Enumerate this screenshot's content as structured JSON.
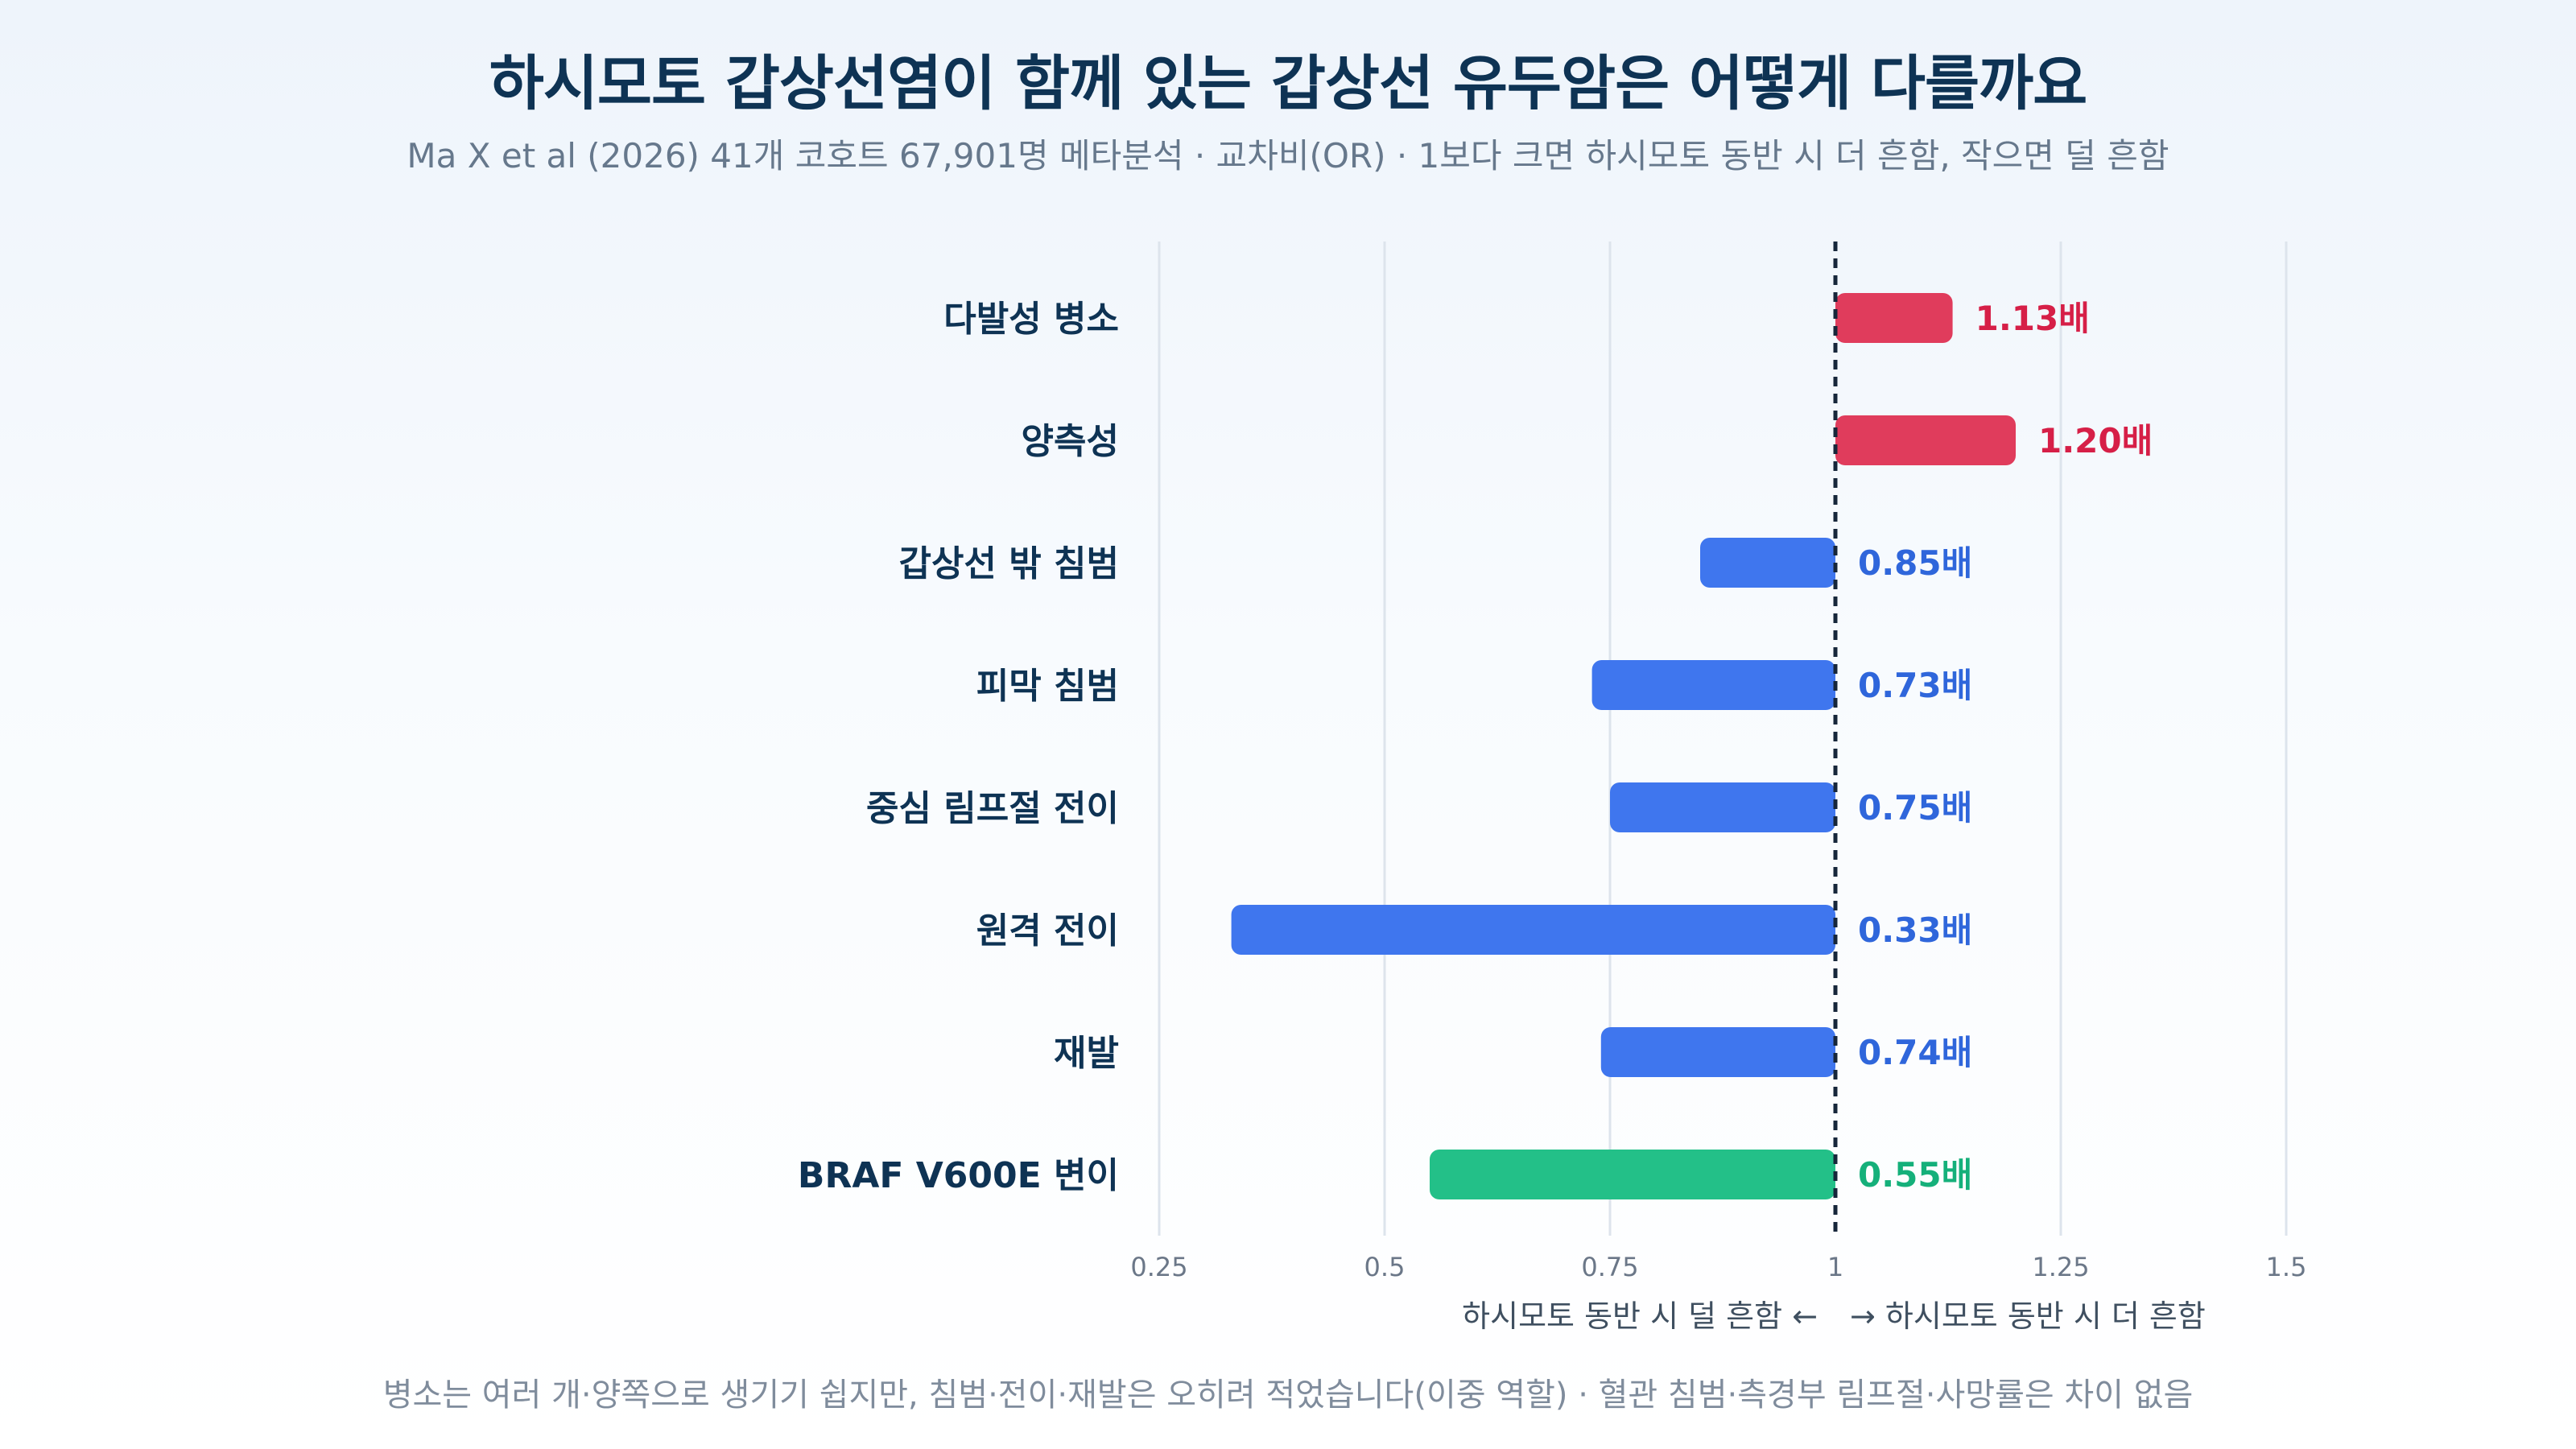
{
  "header": {
    "title": "하시모토 갑상선염이 함께 있는 갑상선 유두암은 어떻게 다를까요",
    "subtitle": "Ma X et al (2026) 41개 코호트 67,901명 메타분석 · 교차비(OR) · 1보다 크면 하시모토 동반 시 더 흔함, 작으면 덜 흔함"
  },
  "chart_data": {
    "type": "bar",
    "orientation": "horizontal",
    "categories": [
      "다발성 병소",
      "양측성",
      "갑상선 밖 침범",
      "피막 침범",
      "중심 림프절 전이",
      "원격 전이",
      "재발",
      "BRAF V600E 변이"
    ],
    "values": [
      1.13,
      1.2,
      0.85,
      0.73,
      0.75,
      0.33,
      0.74,
      0.55
    ],
    "value_labels": [
      "1.13배",
      "1.20배",
      "0.85배",
      "0.73배",
      "0.75배",
      "0.33배",
      "0.74배",
      "0.55배"
    ],
    "bar_colors": [
      "#e03c5c",
      "#e03c5c",
      "#3f76ee",
      "#3f76ee",
      "#3f76ee",
      "#3f76ee",
      "#3f76ee",
      "#23c088"
    ],
    "label_colors": [
      "#d61f47",
      "#d61f47",
      "#2f66db",
      "#2f66db",
      "#2f66db",
      "#2f66db",
      "#2f66db",
      "#15b07a"
    ],
    "reference_value": 1,
    "xlim": [
      0.25,
      1.5
    ],
    "xticks": [
      0.25,
      0.5,
      0.75,
      1,
      1.25,
      1.5
    ],
    "xtick_labels": [
      "0.25",
      "0.5",
      "0.75",
      "1",
      "1.25",
      "1.5"
    ],
    "axis_note_left": "하시모토 동반 시 덜 흔함 ←",
    "axis_note_right": "→ 하시모토 동반 시 더 흔함",
    "grid": true
  },
  "footer": {
    "note": "병소는 여러 개·양쪽으로 생기기 쉽지만, 침범·전이·재발은 오히려 적었습니다(이중 역할) · 혈관 침범·측경부 림프절·사망률은 차이 없음"
  },
  "colors": {
    "title": "#0e3354",
    "reference_line": "#16263a",
    "grid": "#dde4ec"
  }
}
